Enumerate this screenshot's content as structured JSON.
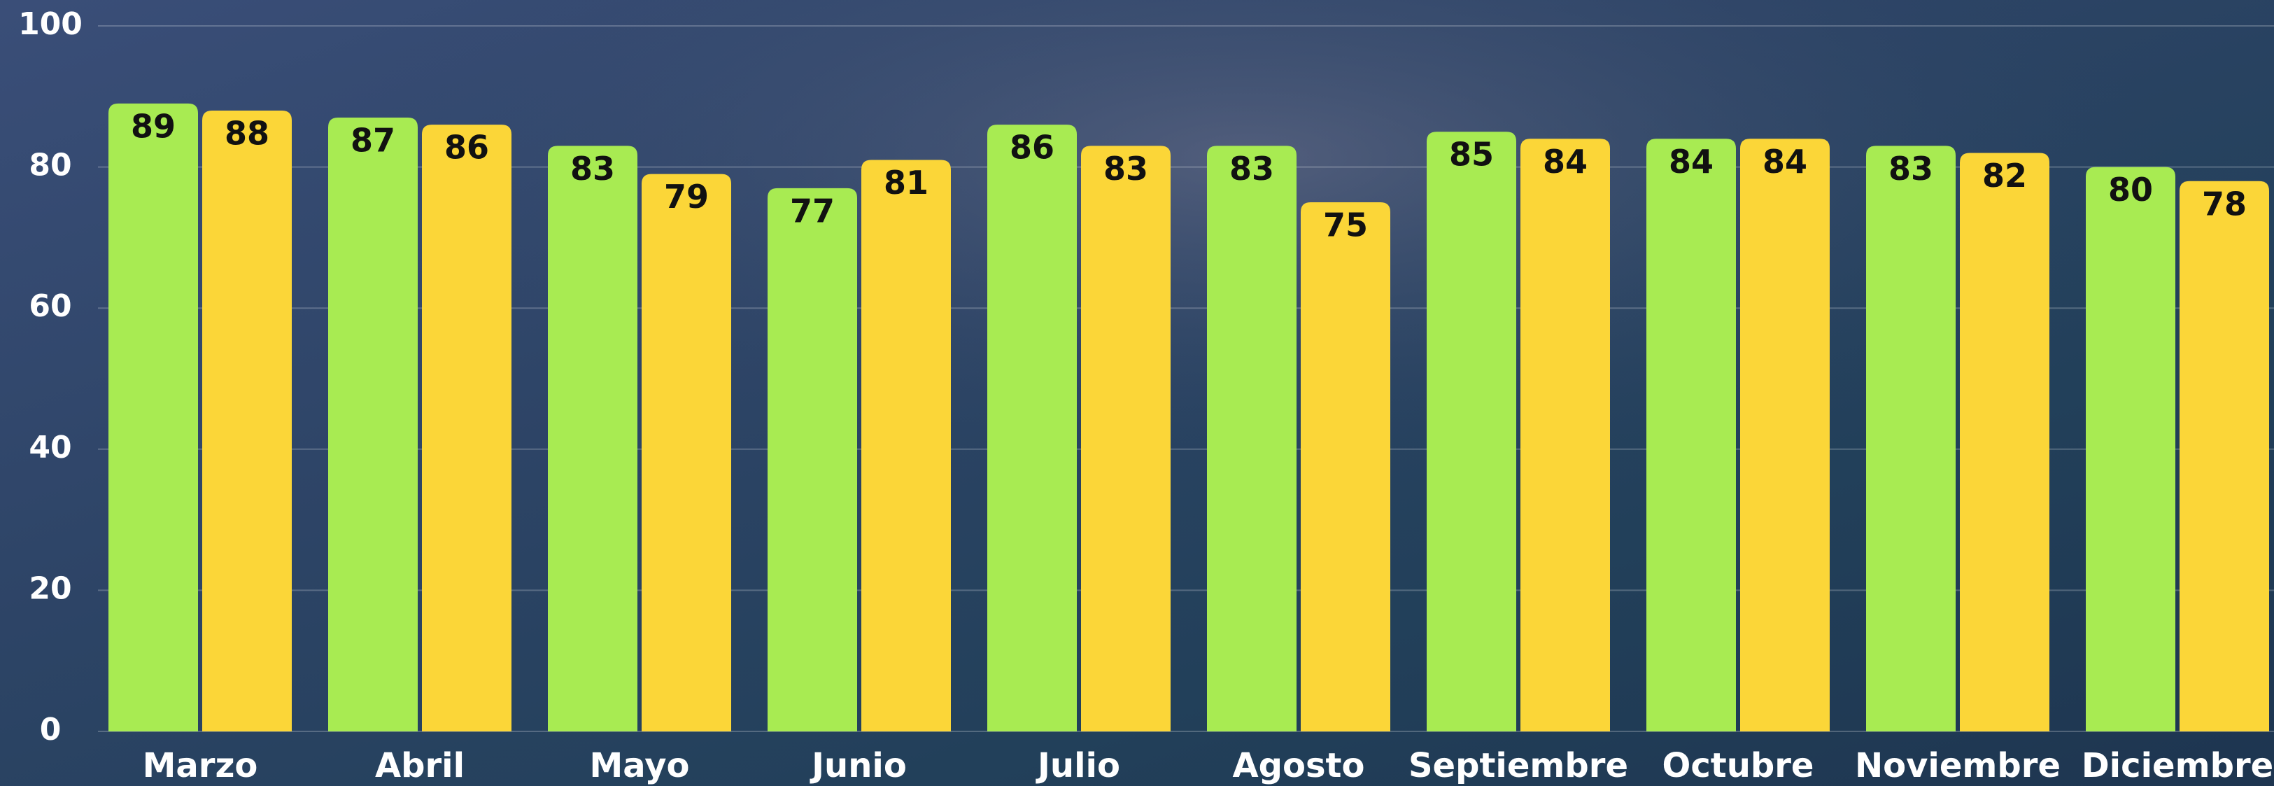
{
  "chart_data": {
    "type": "bar",
    "categories": [
      "Marzo",
      "Abril",
      "Mayo",
      "Junio",
      "Julio",
      "Agosto",
      "Septiembre",
      "Octubre",
      "Noviembre",
      "Diciembre"
    ],
    "series": [
      {
        "color": "#a8eb52",
        "values": [
          89,
          87,
          83,
          77,
          86,
          83,
          85,
          84,
          83,
          80
        ]
      },
      {
        "color": "#fbd638",
        "values": [
          88,
          86,
          79,
          81,
          83,
          75,
          84,
          84,
          82,
          78
        ]
      }
    ],
    "ylim": [
      0,
      100
    ],
    "yticks": [
      0,
      20,
      40,
      60,
      80,
      100
    ],
    "grid": true
  }
}
